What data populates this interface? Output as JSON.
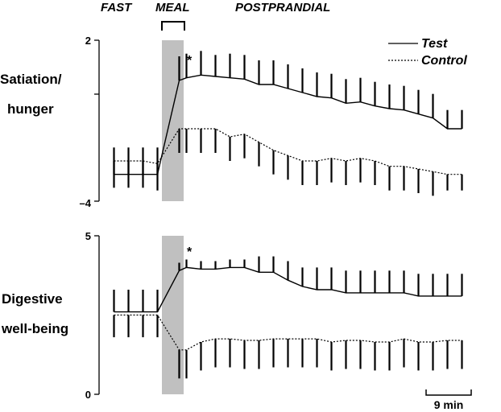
{
  "phases": {
    "fast": "FAST",
    "meal": "MEAL",
    "postprandial": "POSTPRANDIAL"
  },
  "legend": {
    "test": "Test",
    "control": "Control"
  },
  "scale_bar": {
    "label": "9 min",
    "minutes": 9
  },
  "colors": {
    "line": "#000000",
    "meal_band": "#c0c0c0"
  },
  "chart_data": [
    {
      "type": "line",
      "ylabel": "Satiation/\nhunger",
      "ylabel_lines": [
        "Satiation/",
        "hunger"
      ],
      "yticks": [
        "2",
        "–4"
      ],
      "ylim": [
        -4,
        2
      ],
      "xunit": "min",
      "meal_window": [
        0,
        9
      ],
      "significance_marker": {
        "x": 9,
        "text": "*"
      },
      "series": [
        {
          "name": "Test",
          "style": "solid",
          "error_bar_direction": "up",
          "x": [
            -18,
            -12,
            -6,
            0,
            9,
            12,
            18,
            24,
            30,
            36,
            42,
            48,
            54,
            60,
            66,
            72,
            78,
            84,
            90,
            96,
            102,
            108,
            114,
            120,
            126
          ],
          "y": [
            -3.0,
            -3.0,
            -3.0,
            -3.0,
            0.5,
            0.6,
            0.7,
            0.65,
            0.6,
            0.55,
            0.35,
            0.35,
            0.2,
            0.05,
            -0.1,
            -0.15,
            -0.35,
            -0.3,
            -0.45,
            -0.55,
            -0.6,
            -0.75,
            -0.9,
            -1.3,
            -1.3
          ],
          "err": [
            1.0,
            1.0,
            1.0,
            1.0,
            0.9,
            0.9,
            0.9,
            0.8,
            0.9,
            0.9,
            0.9,
            0.9,
            0.9,
            0.9,
            0.9,
            0.9,
            0.9,
            0.9,
            0.9,
            0.9,
            0.9,
            0.9,
            0.9,
            0.7,
            0.7
          ]
        },
        {
          "name": "Control",
          "style": "dashed",
          "error_bar_direction": "down",
          "x": [
            -18,
            -12,
            -6,
            0,
            9,
            12,
            18,
            24,
            30,
            36,
            42,
            48,
            54,
            60,
            66,
            72,
            78,
            84,
            90,
            96,
            102,
            108,
            114,
            120,
            126
          ],
          "y": [
            -2.5,
            -2.5,
            -2.5,
            -2.6,
            -1.3,
            -1.3,
            -1.3,
            -1.3,
            -1.6,
            -1.5,
            -1.8,
            -2.1,
            -2.3,
            -2.5,
            -2.5,
            -2.4,
            -2.5,
            -2.4,
            -2.5,
            -2.7,
            -2.7,
            -2.8,
            -2.9,
            -3.0,
            -3.0
          ],
          "err": [
            1.0,
            1.0,
            1.0,
            1.0,
            0.9,
            0.9,
            0.9,
            0.9,
            0.9,
            0.9,
            0.9,
            0.9,
            0.9,
            0.9,
            0.9,
            0.9,
            0.9,
            0.9,
            0.9,
            0.9,
            0.9,
            0.9,
            0.9,
            0.6,
            0.6
          ]
        }
      ]
    },
    {
      "type": "line",
      "ylabel": "Digestive\nwell-being",
      "ylabel_lines": [
        "Digestive",
        "well-being"
      ],
      "yticks": [
        "5",
        "0"
      ],
      "ylim": [
        0,
        5
      ],
      "xunit": "min",
      "meal_window": [
        0,
        9
      ],
      "significance_marker": {
        "x": 9,
        "text": "*"
      },
      "series": [
        {
          "name": "Test",
          "style": "solid",
          "error_bar_direction": "up",
          "x": [
            -18,
            -12,
            -6,
            0,
            9,
            12,
            18,
            24,
            30,
            36,
            42,
            48,
            54,
            60,
            66,
            72,
            78,
            84,
            90,
            96,
            102,
            108,
            114,
            120,
            126
          ],
          "y": [
            2.6,
            2.6,
            2.6,
            2.6,
            3.9,
            4.0,
            3.95,
            3.95,
            4.0,
            4.0,
            3.85,
            3.85,
            3.6,
            3.4,
            3.3,
            3.3,
            3.2,
            3.2,
            3.2,
            3.2,
            3.2,
            3.1,
            3.1,
            3.1,
            3.1
          ],
          "err": [
            0.7,
            0.7,
            0.7,
            0.7,
            0.25,
            0.25,
            0.25,
            0.25,
            0.25,
            0.25,
            0.5,
            0.5,
            0.6,
            0.6,
            0.7,
            0.7,
            0.7,
            0.7,
            0.7,
            0.7,
            0.7,
            0.7,
            0.7,
            0.7,
            0.7
          ]
        },
        {
          "name": "Control",
          "style": "dashed",
          "error_bar_direction": "down",
          "x": [
            -18,
            -12,
            -6,
            0,
            9,
            12,
            18,
            24,
            30,
            36,
            42,
            48,
            54,
            60,
            66,
            72,
            78,
            84,
            90,
            96,
            102,
            108,
            114,
            120,
            126
          ],
          "y": [
            2.5,
            2.5,
            2.5,
            2.5,
            1.4,
            1.4,
            1.65,
            1.75,
            1.75,
            1.7,
            1.7,
            1.75,
            1.75,
            1.75,
            1.75,
            1.65,
            1.7,
            1.7,
            1.65,
            1.65,
            1.75,
            1.65,
            1.65,
            1.7,
            1.7
          ],
          "err": [
            0.7,
            0.7,
            0.7,
            0.7,
            0.9,
            0.9,
            0.9,
            0.9,
            0.9,
            0.9,
            0.9,
            0.9,
            0.9,
            0.9,
            0.9,
            0.9,
            0.9,
            0.9,
            0.9,
            0.9,
            0.9,
            0.9,
            0.9,
            0.9,
            0.9
          ]
        }
      ]
    }
  ]
}
